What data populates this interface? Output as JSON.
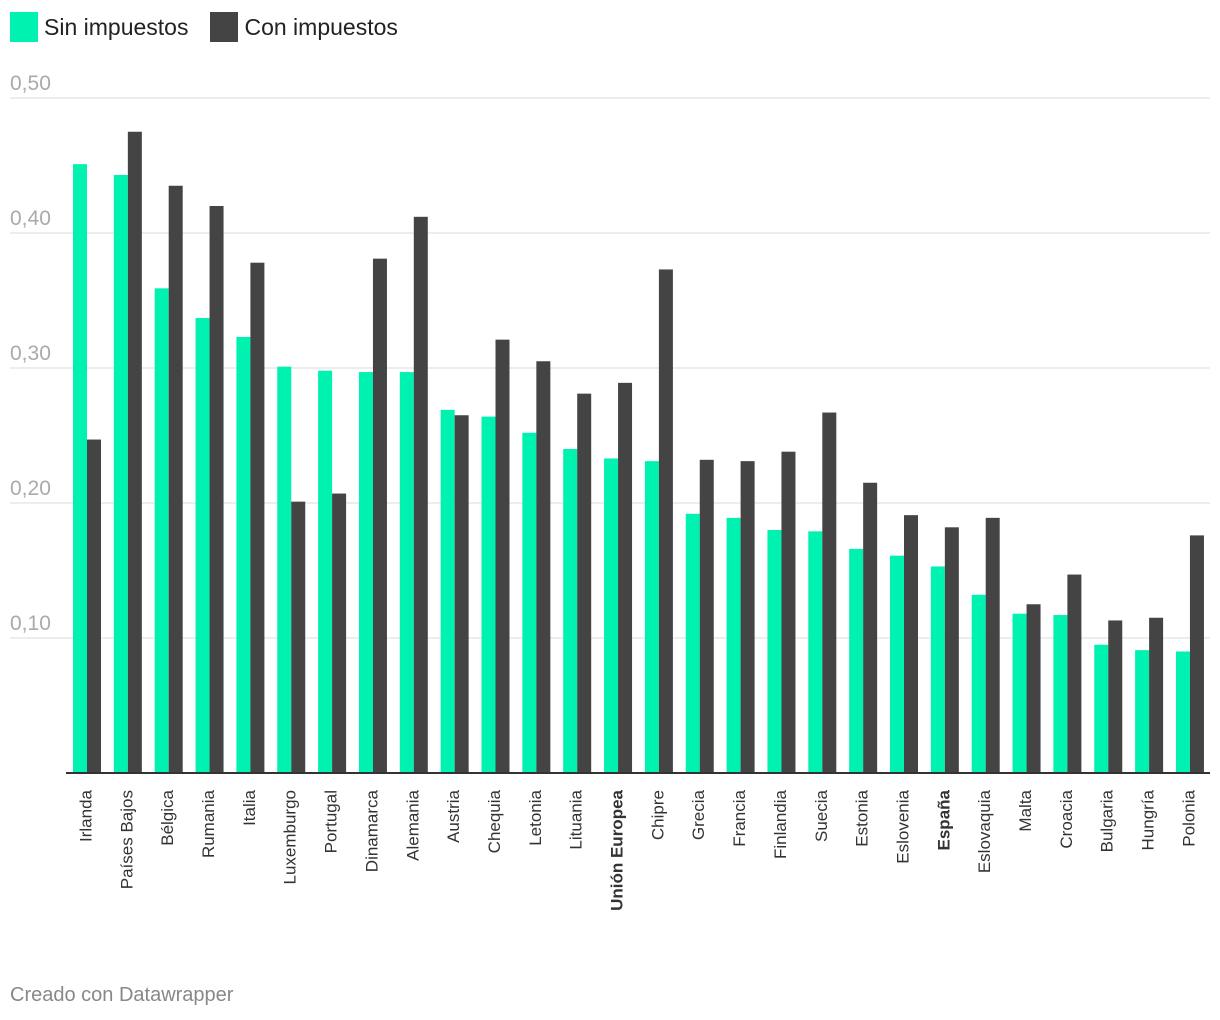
{
  "chart_data": {
    "type": "bar",
    "title": "",
    "xlabel": "",
    "ylabel": "",
    "ylim": [
      0,
      0.5
    ],
    "yticks": [
      0.1,
      0.2,
      0.3,
      0.4,
      0.5
    ],
    "ytick_labels": [
      "0,10",
      "0,20",
      "0,30",
      "0,40",
      "0,50"
    ],
    "legend_position": "top-left",
    "categories": [
      "Irlanda",
      "Países Bajos",
      "Bélgica",
      "Rumania",
      "Italia",
      "Luxemburgo",
      "Portugal",
      "Dinamarca",
      "Alemania",
      "Austria",
      "Chequia",
      "Letonia",
      "Lituania",
      "Unión Europea",
      "Chipre",
      "Grecia",
      "Francia",
      "Finlandia",
      "Suecia",
      "Estonia",
      "Eslovenia",
      "España",
      "Eslovaquia",
      "Malta",
      "Croacia",
      "Bulgaria",
      "Hungría",
      "Polonia"
    ],
    "bold_categories": [
      "Unión Europea",
      "España"
    ],
    "series": [
      {
        "name": "Sin impuestos",
        "color": "#00f2b0",
        "values": [
          0.451,
          0.443,
          0.359,
          0.337,
          0.323,
          0.301,
          0.298,
          0.297,
          0.297,
          0.269,
          0.264,
          0.252,
          0.24,
          0.233,
          0.231,
          0.192,
          0.189,
          0.18,
          0.179,
          0.166,
          0.161,
          0.153,
          0.132,
          0.118,
          0.117,
          0.095,
          0.091,
          0.09
        ]
      },
      {
        "name": "Con impuestos",
        "color": "#444444",
        "values": [
          0.247,
          0.475,
          0.435,
          0.42,
          0.378,
          0.201,
          0.207,
          0.381,
          0.412,
          0.265,
          0.321,
          0.305,
          0.281,
          0.289,
          0.373,
          0.232,
          0.231,
          0.238,
          0.267,
          0.215,
          0.191,
          0.182,
          0.189,
          0.125,
          0.147,
          0.113,
          0.115,
          0.176
        ]
      }
    ]
  },
  "footer": {
    "credit": "Creado con Datawrapper"
  }
}
